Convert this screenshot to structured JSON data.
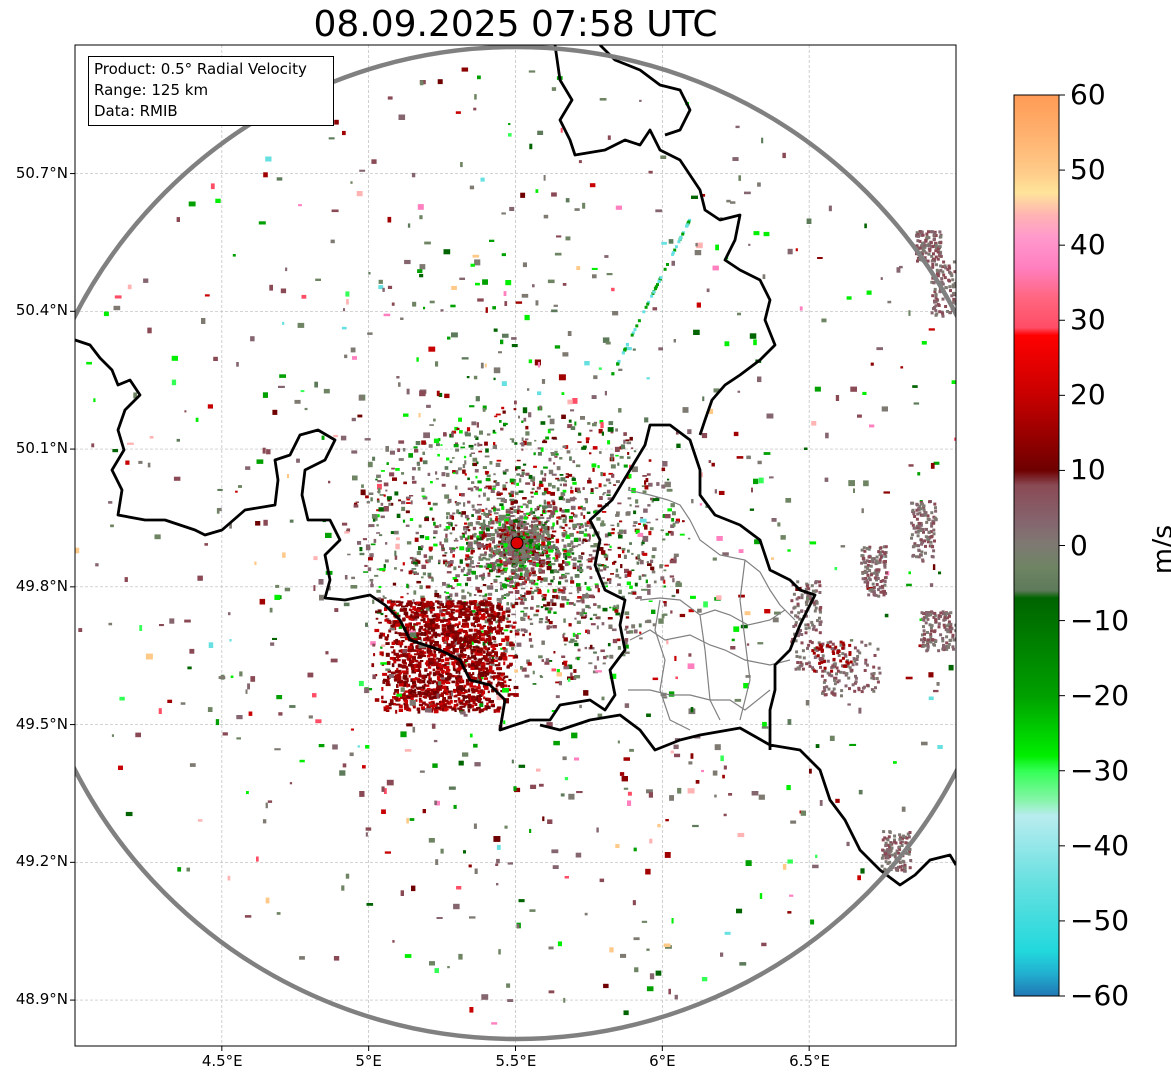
{
  "title": "08.09.2025 07:58 UTC",
  "info_box": {
    "product": "Product: 0.5° Radial Velocity",
    "range": "Range: 125 km",
    "source": "Data: RMIB"
  },
  "map": {
    "lon_range": [
      4.0,
      7.0
    ],
    "lat_range": [
      48.8,
      50.98
    ],
    "lon_ticks": [
      {
        "value": 4.5,
        "label": "4.5°E"
      },
      {
        "value": 5.0,
        "label": "5°E"
      },
      {
        "value": 5.5,
        "label": "5.5°E"
      },
      {
        "value": 6.0,
        "label": "6°E"
      },
      {
        "value": 6.5,
        "label": "6.5°E"
      }
    ],
    "lat_ticks": [
      {
        "value": 50.7,
        "label": "50.7°N"
      },
      {
        "value": 50.4,
        "label": "50.4°N"
      },
      {
        "value": 50.1,
        "label": "50.1°N"
      },
      {
        "value": 49.8,
        "label": "49.8°N"
      },
      {
        "value": 49.5,
        "label": "49.5°N"
      },
      {
        "value": 49.2,
        "label": "49.2°N"
      },
      {
        "value": 48.9,
        "label": "48.9°N"
      }
    ],
    "gridlines": true,
    "radar_site": {
      "lon": 5.505,
      "lat": 49.914,
      "color": "#dd0000"
    },
    "range_ring_color": "#808080",
    "border_color": "#000000",
    "province_border_color": "#808080"
  },
  "colorbar": {
    "min": -60,
    "max": 60,
    "ticks": [
      "60",
      "50",
      "40",
      "30",
      "20",
      "10",
      "0",
      "−10",
      "−20",
      "−30",
      "−40",
      "−50",
      "−60"
    ],
    "tick_values": [
      60,
      50,
      40,
      30,
      20,
      10,
      0,
      -10,
      -20,
      -30,
      -40,
      -50,
      -60
    ],
    "unit": "m/s",
    "stops": [
      {
        "v": 60,
        "color": "#ff9b55"
      },
      {
        "v": 55,
        "color": "#ffb06e"
      },
      {
        "v": 50,
        "color": "#ffc987"
      },
      {
        "v": 47,
        "color": "#ffe49a"
      },
      {
        "v": 44,
        "color": "#ffb3b3"
      },
      {
        "v": 41,
        "color": "#ff99cc"
      },
      {
        "v": 37,
        "color": "#ff7fbf"
      },
      {
        "v": 33,
        "color": "#ff6680"
      },
      {
        "v": 29,
        "color": "#ff4d66"
      },
      {
        "v": 28,
        "color": "#ff0000"
      },
      {
        "v": 20,
        "color": "#c80000"
      },
      {
        "v": 10,
        "color": "#6e0000"
      },
      {
        "v": 8,
        "color": "#8a4a55"
      },
      {
        "v": 3,
        "color": "#85666f"
      },
      {
        "v": 0,
        "color": "#7e7a72"
      },
      {
        "v": -3,
        "color": "#6e8463"
      },
      {
        "v": -6,
        "color": "#5d7a5a"
      },
      {
        "v": -7,
        "color": "#006400"
      },
      {
        "v": -20,
        "color": "#00a000"
      },
      {
        "v": -28,
        "color": "#00ee00"
      },
      {
        "v": -30,
        "color": "#33ff55"
      },
      {
        "v": -34,
        "color": "#88f5aa"
      },
      {
        "v": -36,
        "color": "#b9ecef"
      },
      {
        "v": -45,
        "color": "#66e0e0"
      },
      {
        "v": -54,
        "color": "#22d8dc"
      },
      {
        "v": -57,
        "color": "#22b0d0"
      },
      {
        "v": -60,
        "color": "#1f77b4"
      }
    ]
  }
}
